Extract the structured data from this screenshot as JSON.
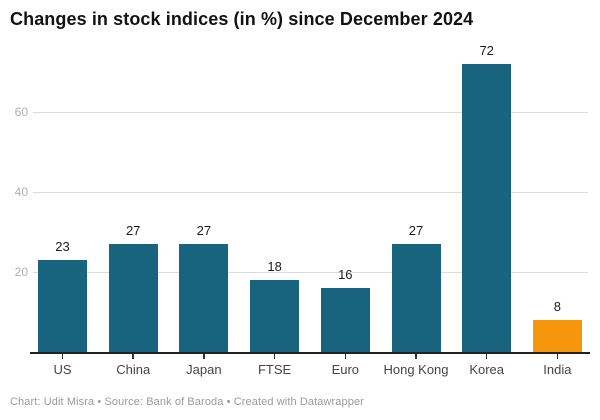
{
  "header": {
    "title": "Changes in stock indices (in %) since December 2024"
  },
  "chart_data": {
    "type": "bar",
    "title": "Changes in stock indices (in %) since December 2024",
    "categories": [
      "US",
      "China",
      "Japan",
      "FTSE",
      "Euro",
      "Hong Kong",
      "Korea",
      "India"
    ],
    "values": [
      23,
      27,
      27,
      18,
      16,
      27,
      72,
      8
    ],
    "value_labels": [
      "23",
      "27",
      "27",
      "18",
      "16",
      "27",
      "72",
      "8"
    ],
    "bar_colors": [
      "#18647E",
      "#18647E",
      "#18647E",
      "#18647E",
      "#18647E",
      "#18647E",
      "#18647E",
      "#F7950B"
    ],
    "default_color": "#18647E",
    "highlight_color": "#F7950B",
    "highlighted_category": "India",
    "xlabel": "",
    "ylabel": "",
    "ylim": [
      0,
      76
    ],
    "yticks": [
      20,
      40,
      60
    ],
    "ytick_labels": [
      "20",
      "40",
      "60"
    ],
    "grid": true,
    "legend_position": "none"
  },
  "footer": {
    "credit": "Chart: Udit Misra • Source: Bank of Baroda • Created with Datawrapper"
  }
}
